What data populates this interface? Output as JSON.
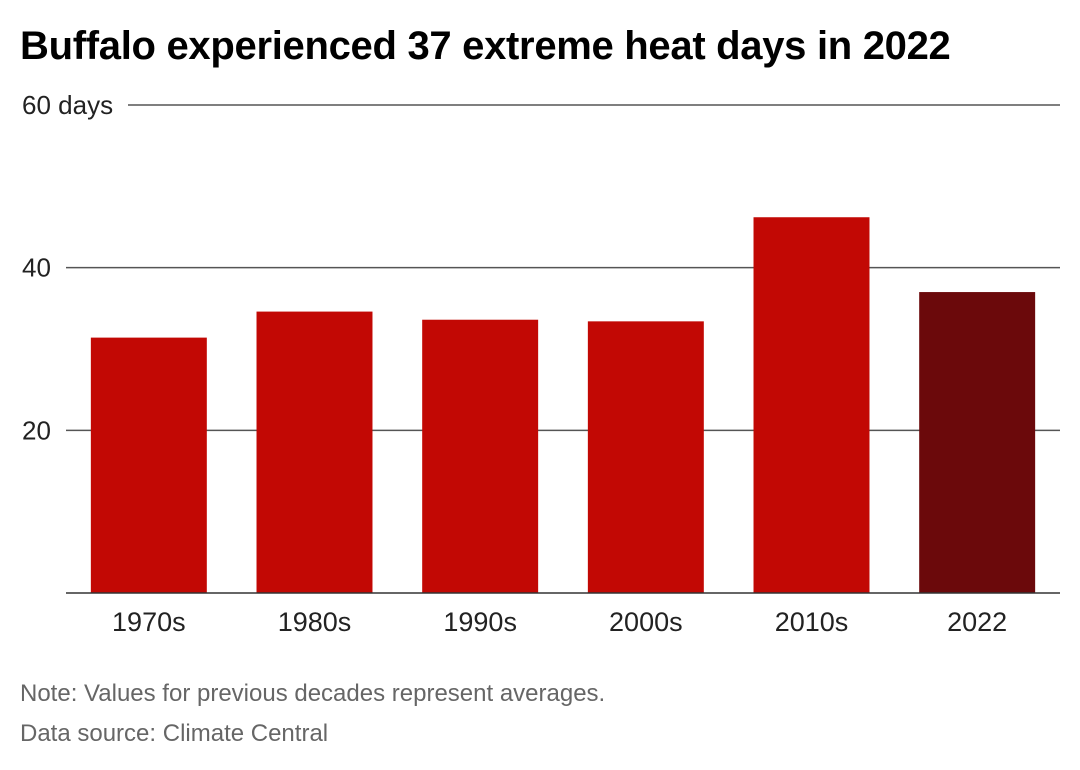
{
  "title": "Buffalo experienced 37 extreme heat days in 2022",
  "footer": {
    "note": "Note: Values for previous decades represent averages.",
    "source": "Data source: Climate Central"
  },
  "chart_data": {
    "type": "bar",
    "title": "Buffalo experienced 37 extreme heat days in 2022",
    "xlabel": "",
    "ylabel": "",
    "categories": [
      "1970s",
      "1980s",
      "1990s",
      "2000s",
      "2010s",
      "2022"
    ],
    "values": [
      31.4,
      34.6,
      33.6,
      33.4,
      46.2,
      37
    ],
    "ylim": [
      0,
      60
    ],
    "yticks": [
      20,
      40,
      60
    ],
    "ytick_labels": [
      "20",
      "40",
      "60 days"
    ],
    "grid": true,
    "legend": "none",
    "colors": {
      "bar": "#c20804",
      "highlight_bar": "#6b090b",
      "gridline": "#555555",
      "axis_text": "#222222"
    },
    "highlight_category": "2022"
  }
}
